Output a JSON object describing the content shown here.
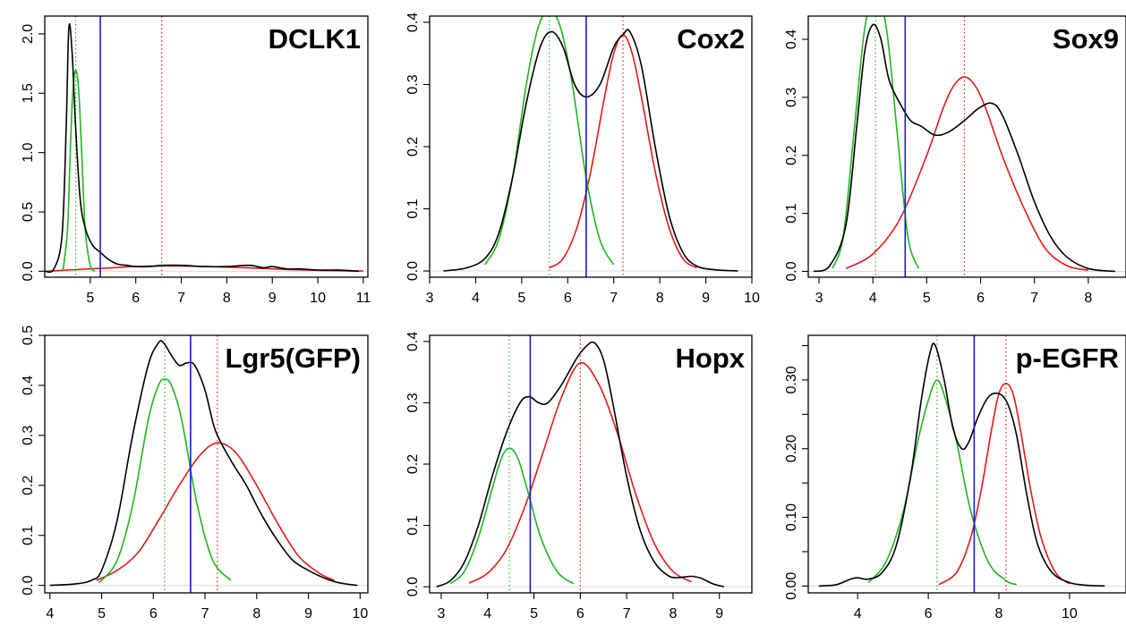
{
  "colors": {
    "density": "#000000",
    "component_low": "#1fb51f",
    "component_high": "#e01b1b",
    "threshold": "#1a1ad6"
  },
  "chart_data": [
    {
      "type": "line",
      "title": "DCLK1",
      "xlim": [
        4.0,
        11.1
      ],
      "ylim": [
        -0.05,
        2.15
      ],
      "xticks": [
        5,
        6,
        7,
        8,
        9,
        10,
        11
      ],
      "yticks": [
        0.0,
        0.5,
        1.0,
        1.5,
        2.0
      ],
      "ytick_labels": [
        "0.0",
        "0.5",
        "1.0",
        "1.5",
        "2.0"
      ],
      "threshold_x": 5.22,
      "green_mean_x": 4.68,
      "red_mean_x": 6.57,
      "series": [
        {
          "role": "density",
          "x": [
            4.0,
            4.2,
            4.38,
            4.47,
            4.53,
            4.6,
            4.68,
            4.78,
            4.9,
            5.05,
            5.22,
            5.4,
            5.6,
            5.8,
            6.0,
            6.3,
            6.6,
            7.0,
            7.5,
            8.0,
            8.5,
            8.8,
            9.0,
            9.3,
            9.6,
            10.0,
            10.5,
            10.9
          ],
          "y": [
            0.0,
            0.02,
            0.3,
            1.2,
            2.05,
            1.85,
            1.2,
            0.6,
            0.35,
            0.22,
            0.16,
            0.1,
            0.06,
            0.05,
            0.04,
            0.04,
            0.05,
            0.05,
            0.04,
            0.04,
            0.05,
            0.03,
            0.04,
            0.02,
            0.02,
            0.01,
            0.01,
            0.0
          ]
        },
        {
          "role": "component_low",
          "x": [
            4.4,
            4.5,
            4.55,
            4.6,
            4.65,
            4.7,
            4.75,
            4.8,
            4.85,
            4.9,
            5.0,
            5.1
          ],
          "y": [
            0.0,
            0.35,
            0.9,
            1.4,
            1.65,
            1.68,
            1.5,
            1.1,
            0.65,
            0.3,
            0.05,
            0.0
          ]
        },
        {
          "role": "component_high",
          "x": [
            4.0,
            4.5,
            5.0,
            5.5,
            6.0,
            6.57,
            7.0,
            7.5,
            8.0,
            8.5,
            9.0,
            9.5,
            10.0,
            10.5,
            11.0
          ],
          "y": [
            0.0,
            0.01,
            0.02,
            0.03,
            0.04,
            0.045,
            0.044,
            0.04,
            0.035,
            0.028,
            0.02,
            0.013,
            0.008,
            0.004,
            0.002
          ]
        }
      ]
    },
    {
      "type": "line",
      "title": "Cox2",
      "xlim": [
        3.0,
        10.0
      ],
      "ylim": [
        -0.01,
        0.41
      ],
      "xticks": [
        3,
        4,
        5,
        6,
        7,
        8,
        9,
        10
      ],
      "yticks": [
        0.0,
        0.1,
        0.2,
        0.3,
        0.4
      ],
      "ytick_labels": [
        "0.0",
        "0.1",
        "0.2",
        "0.3",
        "0.4"
      ],
      "threshold_x": 6.4,
      "green_mean_x": 5.6,
      "red_mean_x": 7.2,
      "series": [
        {
          "role": "density",
          "x": [
            3.3,
            3.8,
            4.2,
            4.5,
            4.8,
            5.1,
            5.4,
            5.65,
            5.9,
            6.15,
            6.4,
            6.7,
            7.0,
            7.2,
            7.35,
            7.6,
            7.9,
            8.2,
            8.5,
            8.8,
            9.2,
            9.7
          ],
          "y": [
            0.0,
            0.005,
            0.02,
            0.06,
            0.15,
            0.27,
            0.36,
            0.385,
            0.36,
            0.3,
            0.28,
            0.3,
            0.36,
            0.38,
            0.385,
            0.33,
            0.2,
            0.09,
            0.03,
            0.008,
            0.002,
            0.0
          ]
        },
        {
          "role": "component_low",
          "x": [
            4.2,
            4.5,
            4.8,
            5.1,
            5.35,
            5.6,
            5.85,
            6.1,
            6.4,
            6.7,
            7.0
          ],
          "y": [
            0.01,
            0.05,
            0.15,
            0.3,
            0.39,
            0.42,
            0.39,
            0.3,
            0.15,
            0.05,
            0.01
          ]
        },
        {
          "role": "component_high",
          "x": [
            5.6,
            5.9,
            6.2,
            6.5,
            6.8,
            7.0,
            7.2,
            7.4,
            7.6,
            7.9,
            8.2,
            8.5,
            8.8
          ],
          "y": [
            0.005,
            0.02,
            0.07,
            0.16,
            0.28,
            0.35,
            0.38,
            0.35,
            0.28,
            0.16,
            0.07,
            0.02,
            0.005
          ]
        }
      ]
    },
    {
      "type": "line",
      "title": "Sox9",
      "xlim": [
        2.8,
        8.7
      ],
      "ylim": [
        -0.01,
        0.44
      ],
      "xticks": [
        3,
        4,
        5,
        6,
        7,
        8
      ],
      "yticks": [
        0.0,
        0.1,
        0.2,
        0.3,
        0.4
      ],
      "ytick_labels": [
        "0.0",
        "0.1",
        "0.2",
        "0.3",
        "0.4"
      ],
      "threshold_x": 4.6,
      "green_mean_x": 4.05,
      "red_mean_x": 5.7,
      "series": [
        {
          "role": "density",
          "x": [
            2.9,
            3.2,
            3.5,
            3.7,
            3.85,
            4.0,
            4.15,
            4.3,
            4.5,
            4.7,
            4.9,
            5.15,
            5.4,
            5.7,
            5.95,
            6.2,
            6.4,
            6.7,
            7.0,
            7.3,
            7.6,
            8.0,
            8.5
          ],
          "y": [
            0.0,
            0.01,
            0.08,
            0.25,
            0.38,
            0.425,
            0.4,
            0.33,
            0.29,
            0.26,
            0.25,
            0.235,
            0.24,
            0.26,
            0.28,
            0.29,
            0.27,
            0.2,
            0.12,
            0.06,
            0.025,
            0.005,
            0.0
          ]
        },
        {
          "role": "component_low",
          "x": [
            3.25,
            3.45,
            3.65,
            3.85,
            4.05,
            4.25,
            4.45,
            4.65,
            4.85
          ],
          "y": [
            0.005,
            0.06,
            0.24,
            0.42,
            0.48,
            0.42,
            0.24,
            0.06,
            0.005
          ]
        },
        {
          "role": "component_high",
          "x": [
            3.5,
            4.0,
            4.5,
            5.0,
            5.3,
            5.5,
            5.7,
            5.9,
            6.1,
            6.4,
            6.8,
            7.2,
            7.6,
            8.0
          ],
          "y": [
            0.005,
            0.03,
            0.09,
            0.2,
            0.28,
            0.32,
            0.335,
            0.32,
            0.28,
            0.2,
            0.11,
            0.04,
            0.01,
            0.002
          ]
        }
      ]
    },
    {
      "type": "line",
      "title": "Lgr5(GFP)",
      "xlim": [
        3.9,
        10.15
      ],
      "ylim": [
        -0.015,
        0.5
      ],
      "xticks": [
        4,
        5,
        6,
        7,
        8,
        9,
        10
      ],
      "yticks": [
        0.0,
        0.1,
        0.2,
        0.3,
        0.4,
        0.5
      ],
      "ytick_labels": [
        "0.0",
        "0.1",
        "0.2",
        "0.3",
        "0.4",
        "0.5"
      ],
      "threshold_x": 6.72,
      "green_mean_x": 6.22,
      "red_mean_x": 7.24,
      "series": [
        {
          "role": "density",
          "x": [
            4.0,
            4.5,
            4.8,
            5.0,
            5.3,
            5.6,
            5.9,
            6.1,
            6.2,
            6.35,
            6.5,
            6.65,
            6.8,
            7.0,
            7.2,
            7.5,
            7.8,
            8.1,
            8.4,
            8.7,
            9.0,
            9.3,
            9.6,
            9.95
          ],
          "y": [
            0.0,
            0.003,
            0.01,
            0.03,
            0.13,
            0.3,
            0.44,
            0.485,
            0.485,
            0.46,
            0.44,
            0.445,
            0.44,
            0.39,
            0.31,
            0.25,
            0.2,
            0.14,
            0.09,
            0.05,
            0.03,
            0.015,
            0.005,
            0.0
          ]
        },
        {
          "role": "component_low",
          "x": [
            4.95,
            5.3,
            5.6,
            5.9,
            6.1,
            6.22,
            6.35,
            6.55,
            6.85,
            7.15,
            7.5
          ],
          "y": [
            0.005,
            0.05,
            0.16,
            0.33,
            0.4,
            0.412,
            0.4,
            0.33,
            0.16,
            0.05,
            0.01
          ]
        },
        {
          "role": "component_high",
          "x": [
            4.9,
            5.3,
            5.7,
            6.1,
            6.5,
            6.9,
            7.24,
            7.6,
            8.0,
            8.4,
            8.8,
            9.2,
            9.5
          ],
          "y": [
            0.01,
            0.03,
            0.065,
            0.13,
            0.2,
            0.26,
            0.285,
            0.265,
            0.2,
            0.125,
            0.06,
            0.025,
            0.01
          ]
        }
      ]
    },
    {
      "type": "line",
      "title": "Hopx",
      "xlim": [
        2.75,
        9.7
      ],
      "ylim": [
        -0.01,
        0.41
      ],
      "xticks": [
        3,
        4,
        5,
        6,
        7,
        8,
        9
      ],
      "yticks": [
        0.0,
        0.1,
        0.2,
        0.3,
        0.4
      ],
      "ytick_labels": [
        "0.0",
        "0.1",
        "0.2",
        "0.3",
        "0.4"
      ],
      "threshold_x": 4.92,
      "green_mean_x": 4.47,
      "red_mean_x": 6.0,
      "series": [
        {
          "role": "density",
          "x": [
            2.9,
            3.2,
            3.5,
            3.8,
            4.1,
            4.4,
            4.7,
            4.9,
            5.1,
            5.3,
            5.6,
            5.9,
            6.1,
            6.3,
            6.5,
            6.7,
            7.0,
            7.3,
            7.6,
            7.9,
            8.1,
            8.4,
            8.6,
            8.85,
            9.1
          ],
          "y": [
            0.0,
            0.01,
            0.04,
            0.1,
            0.18,
            0.25,
            0.3,
            0.31,
            0.3,
            0.3,
            0.33,
            0.37,
            0.39,
            0.398,
            0.37,
            0.3,
            0.18,
            0.09,
            0.04,
            0.018,
            0.015,
            0.017,
            0.014,
            0.005,
            0.0
          ]
        },
        {
          "role": "component_low",
          "x": [
            3.2,
            3.5,
            3.8,
            4.1,
            4.3,
            4.47,
            4.65,
            4.85,
            5.15,
            5.5,
            5.85
          ],
          "y": [
            0.005,
            0.025,
            0.08,
            0.16,
            0.21,
            0.226,
            0.21,
            0.16,
            0.08,
            0.025,
            0.005
          ]
        },
        {
          "role": "component_high",
          "x": [
            3.6,
            4.0,
            4.4,
            4.8,
            5.2,
            5.6,
            6.0,
            6.4,
            6.8,
            7.2,
            7.6,
            8.0,
            8.4
          ],
          "y": [
            0.006,
            0.022,
            0.06,
            0.13,
            0.22,
            0.31,
            0.365,
            0.33,
            0.25,
            0.15,
            0.07,
            0.025,
            0.008
          ]
        }
      ]
    },
    {
      "type": "line",
      "title": "p-EGFR",
      "xlim": [
        2.6,
        11.6
      ],
      "ylim": [
        -0.01,
        0.365
      ],
      "xticks": [
        4,
        6,
        8,
        10
      ],
      "yticks": [
        0.0,
        0.05,
        0.1,
        0.15,
        0.2,
        0.25,
        0.3,
        0.35
      ],
      "ytick_labels": [
        "0.00",
        "",
        "0.10",
        "",
        "0.20",
        "",
        "0.30",
        ""
      ],
      "threshold_x": 7.3,
      "green_mean_x": 6.25,
      "red_mean_x": 8.2,
      "series": [
        {
          "role": "density",
          "x": [
            2.9,
            3.4,
            3.8,
            4.0,
            4.3,
            4.7,
            5.1,
            5.5,
            5.8,
            6.05,
            6.2,
            6.45,
            6.7,
            6.95,
            7.15,
            7.4,
            7.7,
            8.0,
            8.25,
            8.5,
            8.8,
            9.1,
            9.5,
            10.0,
            10.5,
            11.0
          ],
          "y": [
            0.0,
            0.002,
            0.01,
            0.012,
            0.01,
            0.02,
            0.06,
            0.16,
            0.27,
            0.34,
            0.35,
            0.3,
            0.23,
            0.2,
            0.21,
            0.245,
            0.275,
            0.28,
            0.265,
            0.22,
            0.13,
            0.06,
            0.02,
            0.005,
            0.001,
            0.0
          ]
        },
        {
          "role": "component_low",
          "x": [
            4.3,
            4.8,
            5.3,
            5.7,
            6.0,
            6.25,
            6.5,
            6.8,
            7.2,
            7.7,
            8.2,
            8.5
          ],
          "y": [
            0.005,
            0.035,
            0.11,
            0.21,
            0.27,
            0.3,
            0.27,
            0.21,
            0.11,
            0.035,
            0.008,
            0.002
          ]
        },
        {
          "role": "component_high",
          "x": [
            6.3,
            6.8,
            7.2,
            7.5,
            7.8,
            8.0,
            8.2,
            8.4,
            8.6,
            8.9,
            9.2,
            9.6,
            10.0
          ],
          "y": [
            0.002,
            0.02,
            0.07,
            0.14,
            0.23,
            0.28,
            0.295,
            0.28,
            0.23,
            0.14,
            0.07,
            0.02,
            0.003
          ]
        }
      ]
    }
  ]
}
